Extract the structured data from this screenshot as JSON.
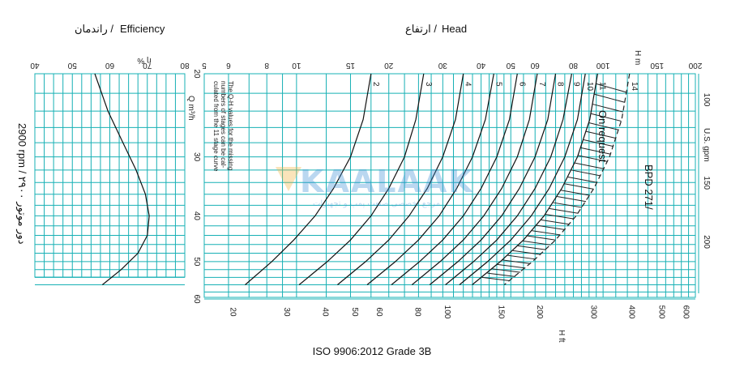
{
  "header": {
    "efficiency_label": "Efficiency",
    "efficiency_label_fa": "راندمان /",
    "head_label": "Head",
    "head_label_fa": "ارتفاع /"
  },
  "side_label": "2900 rpm / ۲۹۰۰ دور موتور",
  "pump_model": "BPD 271/",
  "on_request": "On request",
  "note_lines": [
    "The Q-H values for the missing",
    "numbers of stages can be cal-",
    "culated from the 11 stage curve"
  ],
  "footer": "ISO 9906:2012 Grade 3B",
  "watermark": {
    "text": "KAALAAK",
    "sub": "مرجع تخصصی صنعت پمپ و تجهیزات"
  },
  "colors": {
    "grid": "#17b0b5",
    "curve": "#111111",
    "text": "#111111"
  },
  "chart_data": [
    {
      "type": "line",
      "name": "efficiency",
      "axis_label": "η %",
      "efficiency_ticks": [
        40,
        50,
        60,
        70,
        80
      ],
      "efficiency_range": [
        40,
        80
      ],
      "flow_ticks": [
        20,
        30,
        40,
        50,
        60
      ],
      "flow_label": "Q m³/h",
      "flow_range": [
        20,
        60
      ],
      "curve": [
        {
          "q": 20,
          "eta": 56
        },
        {
          "q": 24,
          "eta": 59.5
        },
        {
          "q": 28,
          "eta": 63.5
        },
        {
          "q": 32,
          "eta": 67
        },
        {
          "q": 36,
          "eta": 69.5
        },
        {
          "q": 40,
          "eta": 70.5
        },
        {
          "q": 44,
          "eta": 70
        },
        {
          "q": 48,
          "eta": 67.5
        },
        {
          "q": 52,
          "eta": 63
        },
        {
          "q": 56,
          "eta": 58
        }
      ]
    },
    {
      "type": "line",
      "name": "head",
      "head_m_ticks": [
        5,
        6,
        8,
        10,
        15,
        20,
        30,
        40,
        50,
        60,
        80,
        100,
        150,
        200
      ],
      "head_m_axis_label": "H m",
      "head_ft_ticks": [
        20,
        30,
        40,
        50,
        60,
        80,
        100,
        150,
        200,
        300,
        400,
        500,
        600
      ],
      "head_ft_axis_label": "H ft",
      "flow_ticks": [
        20,
        30,
        40,
        50,
        60
      ],
      "flow_label": "Q m³/h",
      "usgpm_ticks": [
        100,
        150,
        200
      ],
      "usgpm_label": "U.S. gpm",
      "scale": "log",
      "series": [
        {
          "name": "2",
          "points": [
            [
              20,
              17.5
            ],
            [
              25,
              16.5
            ],
            [
              30,
              15
            ],
            [
              35,
              13.2
            ],
            [
              40,
              11.5
            ],
            [
              45,
              9.8
            ],
            [
              50,
              8.3
            ],
            [
              56,
              6.8
            ]
          ]
        },
        {
          "name": "3",
          "points": [
            [
              20,
              26
            ],
            [
              25,
              24.5
            ],
            [
              30,
              22.5
            ],
            [
              35,
              20
            ],
            [
              40,
              17.5
            ],
            [
              45,
              15
            ],
            [
              50,
              12.6
            ],
            [
              56,
              10.2
            ]
          ]
        },
        {
          "name": "4",
          "points": [
            [
              20,
              35
            ],
            [
              25,
              33
            ],
            [
              30,
              30
            ],
            [
              35,
              26.7
            ],
            [
              40,
              23.3
            ],
            [
              45,
              20
            ],
            [
              50,
              16.8
            ],
            [
              56,
              13.6
            ]
          ]
        },
        {
          "name": "5",
          "points": [
            [
              20,
              44
            ],
            [
              25,
              41.3
            ],
            [
              30,
              37.5
            ],
            [
              35,
              33.3
            ],
            [
              40,
              29.2
            ],
            [
              45,
              25
            ],
            [
              50,
              21
            ],
            [
              56,
              17
            ]
          ]
        },
        {
          "name": "6",
          "points": [
            [
              20,
              52.5
            ],
            [
              25,
              49.5
            ],
            [
              30,
              45
            ],
            [
              35,
              40
            ],
            [
              40,
              35
            ],
            [
              45,
              30
            ],
            [
              50,
              25.2
            ],
            [
              56,
              20.4
            ]
          ]
        },
        {
          "name": "7",
          "points": [
            [
              20,
              61
            ],
            [
              25,
              57.5
            ],
            [
              30,
              52.5
            ],
            [
              35,
              46.7
            ],
            [
              40,
              40.8
            ],
            [
              45,
              35
            ],
            [
              50,
              29.4
            ],
            [
              56,
              23.8
            ]
          ]
        },
        {
          "name": "8",
          "points": [
            [
              20,
              70
            ],
            [
              25,
              66
            ],
            [
              30,
              60
            ],
            [
              35,
              53.3
            ],
            [
              40,
              46.7
            ],
            [
              45,
              40
            ],
            [
              50,
              33.6
            ],
            [
              56,
              27.2
            ]
          ]
        },
        {
          "name": "9",
          "points": [
            [
              20,
              79
            ],
            [
              25,
              74
            ],
            [
              30,
              67.5
            ],
            [
              35,
              60
            ],
            [
              40,
              52.5
            ],
            [
              45,
              45
            ],
            [
              50,
              37.8
            ],
            [
              56,
              30.6
            ]
          ]
        },
        {
          "name": "10",
          "points": [
            [
              20,
              87.5
            ],
            [
              25,
              82.5
            ],
            [
              30,
              75
            ],
            [
              35,
              66.7
            ],
            [
              40,
              58.3
            ],
            [
              45,
              50
            ],
            [
              50,
              42
            ],
            [
              56,
              34
            ]
          ]
        },
        {
          "name": "11",
          "points": [
            [
              20,
              96
            ],
            [
              25,
              90.5
            ],
            [
              30,
              82.5
            ],
            [
              35,
              73.3
            ],
            [
              40,
              64.2
            ],
            [
              45,
              55
            ],
            [
              50,
              46.2
            ],
            [
              56,
              37.4
            ]
          ]
        },
        {
          "name": "14",
          "points": [
            [
              20,
              122
            ],
            [
              25,
              115
            ],
            [
              30,
              105
            ],
            [
              35,
              93.3
            ],
            [
              40,
              81.7
            ],
            [
              45,
              70
            ],
            [
              50,
              58.8
            ],
            [
              56,
              47.6
            ]
          ]
        }
      ]
    }
  ]
}
